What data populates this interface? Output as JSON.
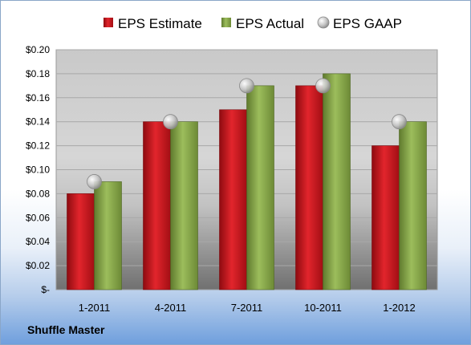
{
  "company": "Shuffle Master",
  "colors": {
    "estimate": "#c8141c",
    "actual": "#86a64a",
    "gaap": "#c8c8c8"
  },
  "chart_data": {
    "type": "bar",
    "categories": [
      "1-2011",
      "4-2011",
      "7-2011",
      "10-2011",
      "1-2012"
    ],
    "series": [
      {
        "name": "EPS Estimate",
        "values": [
          0.08,
          0.14,
          0.15,
          0.17,
          0.12
        ]
      },
      {
        "name": "EPS Actual",
        "values": [
          0.09,
          0.14,
          0.17,
          0.18,
          0.14
        ]
      },
      {
        "name": "EPS GAAP",
        "values": [
          0.09,
          0.14,
          0.17,
          0.17,
          0.14
        ],
        "style": "marker"
      }
    ],
    "ylim": [
      0,
      0.2
    ],
    "yticks": [
      0,
      0.02,
      0.04,
      0.06,
      0.08,
      0.1,
      0.12,
      0.14,
      0.16,
      0.18,
      0.2
    ],
    "ytick_labels": [
      "$-",
      "$0.02",
      "$0.04",
      "$0.06",
      "$0.08",
      "$0.10",
      "$0.12",
      "$0.14",
      "$0.16",
      "$0.18",
      "$0.20"
    ],
    "grid": true,
    "legend_position": "top"
  }
}
